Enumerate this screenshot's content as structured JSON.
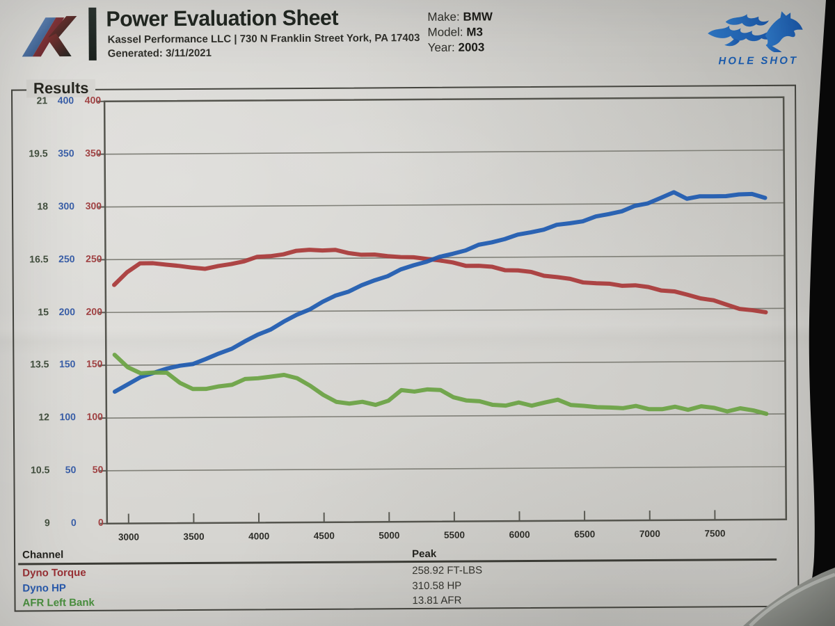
{
  "header": {
    "title": "Power Evaluation Sheet",
    "company_line": "Kassel Performance LLC | 730 N Franklin Street York, PA 17403",
    "generated_line": "Generated: 3/11/2021",
    "vehicle": {
      "make_label": "Make:",
      "make": "BMW",
      "model_label": "Model:",
      "model": "M3",
      "year_label": "Year:",
      "year": "2003"
    },
    "brand": {
      "name": "HOLE SHOT",
      "color": "#1b5cae"
    }
  },
  "results": {
    "section_label": "Results",
    "table": {
      "channel_header": "Channel",
      "peak_header": "Peak",
      "rows": [
        {
          "channel": "Dyno Torque",
          "peak": "258.92 FT-LBS",
          "color": "#9b3136"
        },
        {
          "channel": "Dyno HP",
          "peak": "310.58 HP",
          "color": "#2a5cb0"
        },
        {
          "channel": "AFR Left Bank",
          "peak": "13.81 AFR",
          "color": "#4c9440"
        }
      ]
    }
  },
  "chart_data": {
    "type": "line",
    "title": "",
    "xlabel": "",
    "ylabel": "",
    "grid": "horizontal-only",
    "legend_position": "table-below",
    "x_ticks": [
      3000,
      3500,
      4000,
      4500,
      5000,
      5500,
      6000,
      6500,
      7000,
      7500
    ],
    "x_axis_range": [
      2820,
      8050
    ],
    "y_axes": [
      {
        "id": "afr",
        "color": "#43503f",
        "range": [
          9,
          21
        ],
        "ticks": [
          21,
          19.5,
          18,
          16.5,
          15,
          13.5,
          12,
          10.5,
          9
        ]
      },
      {
        "id": "hp",
        "color": "#3a5fa8",
        "range": [
          0,
          400
        ],
        "ticks": [
          400,
          350,
          300,
          250,
          200,
          150,
          100,
          50,
          0
        ]
      },
      {
        "id": "torque",
        "color": "#a04243",
        "range": [
          0,
          400
        ],
        "ticks": [
          400,
          350,
          300,
          250,
          200,
          150,
          100,
          50,
          0
        ]
      }
    ],
    "x": [
      2900,
      3000,
      3100,
      3200,
      3300,
      3400,
      3500,
      3600,
      3700,
      3800,
      3900,
      4000,
      4100,
      4200,
      4300,
      4400,
      4500,
      4600,
      4700,
      4800,
      4900,
      5000,
      5100,
      5200,
      5300,
      5400,
      5500,
      5600,
      5700,
      5800,
      5900,
      6000,
      6100,
      6200,
      6300,
      6400,
      6500,
      6600,
      6700,
      6800,
      6900,
      7000,
      7100,
      7200,
      7300,
      7400,
      7500,
      7600,
      7700,
      7800,
      7900
    ],
    "series": [
      {
        "name": "Dyno Torque",
        "axis": "torque",
        "unit": "FT-LBS",
        "peak": 258.92,
        "color": "#a93939",
        "values": [
          226,
          239,
          246,
          247,
          246,
          243,
          242,
          241,
          242,
          245,
          248,
          251,
          253,
          255,
          257,
          259,
          258,
          257,
          255,
          253,
          252,
          252,
          251,
          250,
          250,
          248,
          245,
          243,
          242,
          240,
          238,
          237,
          235,
          233,
          231,
          229,
          227,
          225,
          224,
          223,
          222,
          220,
          218,
          216,
          213,
          211,
          208,
          204,
          201,
          198,
          196
        ]
      },
      {
        "name": "Dyno HP",
        "axis": "hp",
        "unit": "HP",
        "peak": 310.58,
        "color": "#1e5ab0",
        "values": [
          126,
          132,
          138,
          143,
          146,
          148,
          151,
          155,
          160,
          166,
          172,
          178,
          184,
          190,
          196,
          202,
          208,
          214,
          219,
          224,
          229,
          234,
          239,
          243,
          247,
          250,
          253,
          257,
          261,
          264,
          268,
          271,
          274,
          277,
          280,
          282,
          284,
          287,
          290,
          293,
          297,
          301,
          307,
          310,
          306,
          308,
          305,
          307,
          308,
          306,
          305
        ]
      },
      {
        "name": "AFR Left Bank",
        "axis": "afr",
        "unit": "AFR",
        "peak": 13.81,
        "color": "#6aa244",
        "values": [
          13.81,
          13.4,
          13.25,
          13.3,
          13.25,
          13.0,
          12.85,
          12.8,
          12.9,
          12.95,
          13.05,
          13.1,
          13.15,
          13.15,
          13.1,
          12.9,
          12.6,
          12.45,
          12.4,
          12.4,
          12.35,
          12.45,
          12.7,
          12.7,
          12.75,
          12.7,
          12.55,
          12.45,
          12.4,
          12.35,
          12.3,
          12.35,
          12.3,
          12.35,
          12.4,
          12.3,
          12.25,
          12.2,
          12.25,
          12.2,
          12.25,
          12.2,
          12.15,
          12.2,
          12.15,
          12.2,
          12.15,
          12.1,
          12.15,
          12.1,
          12.05
        ]
      }
    ]
  }
}
